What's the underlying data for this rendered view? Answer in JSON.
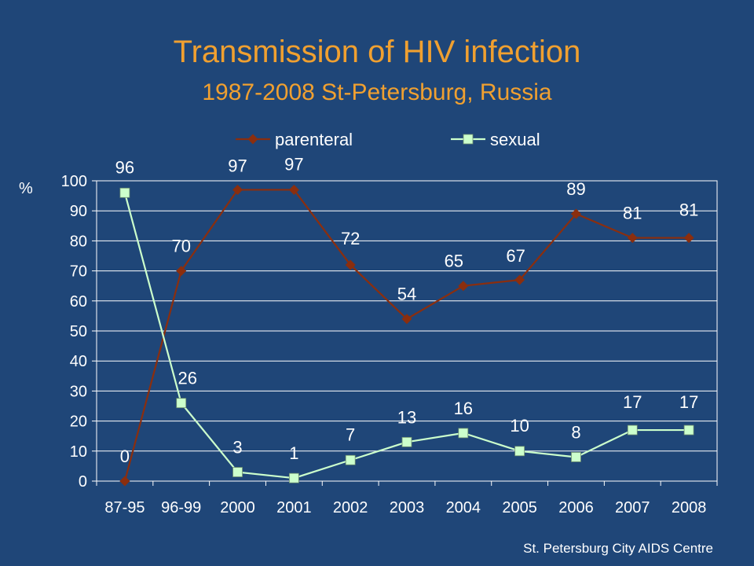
{
  "slide": {
    "title": "Transmission of HIV infection",
    "subtitle": "1987-2008 St-Petersburg,  Russia",
    "footer": "St. Petersburg City AIDS Centre"
  },
  "colors": {
    "background": "#1f4678",
    "title": "#f0a030",
    "parenteral": "#8b2e0e",
    "sexual": "#ccffcc",
    "grid": "#ffffff"
  },
  "chart_data": {
    "type": "line",
    "title": "",
    "xlabel": "",
    "ylabel": "%",
    "ylim": [
      0,
      100
    ],
    "yticks": [
      0,
      10,
      20,
      30,
      40,
      50,
      60,
      70,
      80,
      90,
      100
    ],
    "grid": true,
    "legend": "top",
    "categories": [
      "87-95",
      "96-99",
      "2000",
      "2001",
      "2002",
      "2003",
      "2004",
      "2005",
      "2006",
      "2007",
      "2008"
    ],
    "series": [
      {
        "name": "parenteral",
        "marker": "diamond",
        "values": [
          0,
          70,
          97,
          97,
          72,
          54,
          65,
          67,
          89,
          81,
          81
        ]
      },
      {
        "name": "sexual",
        "marker": "square",
        "values": [
          96,
          26,
          3,
          1,
          7,
          13,
          16,
          10,
          8,
          17,
          17
        ]
      }
    ]
  }
}
